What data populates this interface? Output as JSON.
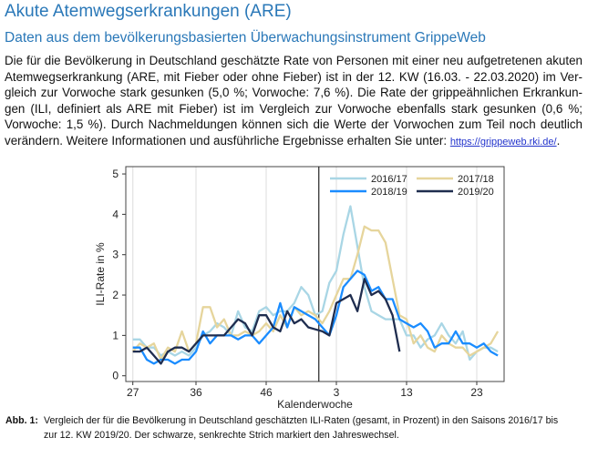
{
  "title": "Akute Atemwegserkrankungen (ARE)",
  "subtitle": "Daten aus dem bevölkerungsbasierten Überwachungsinstrument GrippeWeb",
  "paragraph_lines": [
    "Die für die Bevölkerung in Deutschland geschätzte Rate von Personen mit einer neu aufgetretenen akuten",
    "Atemwegserkrankung (ARE, mit Fieber oder ohne Fieber) ist in der 12. KW (16.03. - 22.03.2020) im Ver-",
    "gleich zur Vorwoche stark gesunken (5,0 %; Vorwoche: 7,6 %). Die Rate der grippeähnlichen Erkrankun-",
    "gen (ILI, definiert als ARE mit Fieber) ist im Vergleich zur Vorwoche ebenfalls stark gesunken (0,6 %;",
    "Vorwoche: 1,5 %). Durch Nachmeldungen können sich die Werte der Vorwochen zum Teil noch deutlich",
    "verändern. Weitere Informationen und ausführliche Ergebnisse erhalten Sie unter: "
  ],
  "link": "https://grippeweb.rki.de/",
  "link_suffix": ".",
  "caption": {
    "label": "Abb. 1:",
    "line1": "Vergleich der für die Bevölkerung in Deutschland geschätzten ILI-Raten (gesamt, in Prozent) in den Saisons 2016/17 bis",
    "line2": "zur 12. KW 2019/20. Der schwarze, senkrechte Strich markiert den Jahreswechsel."
  },
  "chart_data": {
    "type": "line",
    "xlabel": "Kalenderwoche",
    "ylabel": "ILI-Rate in %",
    "ylim": [
      0,
      5
    ],
    "yticks": [
      "0",
      "1",
      "2",
      "3",
      "4",
      "5"
    ],
    "weeks": [
      27,
      28,
      29,
      30,
      31,
      32,
      33,
      34,
      35,
      36,
      37,
      38,
      39,
      40,
      41,
      42,
      43,
      44,
      45,
      46,
      47,
      48,
      49,
      50,
      51,
      52,
      53,
      1,
      2,
      3,
      4,
      5,
      6,
      7,
      8,
      9,
      10,
      11,
      12,
      13,
      14,
      15,
      16,
      17,
      18,
      19,
      20,
      21,
      22,
      23,
      24,
      25,
      26
    ],
    "xticks": [
      "27",
      "36",
      "46",
      "3",
      "13",
      "23"
    ],
    "year_change_after_week": 53,
    "legend_position": "top-right",
    "series": [
      {
        "name": "2016/17",
        "color": "#a9d6e5",
        "values": [
          0.9,
          0.9,
          0.7,
          0.7,
          0.5,
          0.6,
          0.5,
          0.6,
          0.5,
          0.7,
          1.0,
          1.1,
          1.3,
          1.2,
          1.0,
          1.6,
          1.2,
          1.1,
          1.6,
          1.7,
          1.5,
          1.6,
          1.6,
          1.8,
          2.2,
          2.0,
          1.5,
          1.6,
          2.3,
          2.6,
          3.5,
          4.2,
          3.2,
          2.2,
          1.6,
          1.5,
          1.4,
          1.4,
          1.4,
          1.0,
          1.0,
          0.7,
          0.9,
          1.0,
          1.3,
          1.0,
          0.8,
          1.1,
          0.4,
          0.6,
          0.7,
          0.7,
          0.6
        ]
      },
      {
        "name": "2017/18",
        "color": "#e6d59c",
        "values": [
          0.6,
          0.8,
          0.7,
          0.8,
          0.4,
          0.7,
          0.6,
          1.1,
          0.6,
          0.8,
          1.7,
          1.7,
          1.2,
          1.4,
          1.0,
          1.0,
          1.1,
          1.0,
          1.1,
          1.3,
          1.1,
          1.5,
          1.2,
          1.7,
          1.5,
          1.6,
          1.5,
          1.3,
          1.6,
          2.0,
          2.4,
          2.4,
          3.0,
          3.7,
          3.6,
          3.6,
          3.3,
          2.4,
          1.5,
          1.4,
          0.8,
          1.0,
          0.7,
          0.6,
          1.0,
          0.8,
          0.7,
          0.7,
          0.5,
          0.6,
          0.7,
          0.8,
          1.1
        ]
      },
      {
        "name": "2018/19",
        "color": "#1a8cff",
        "values": [
          0.7,
          0.7,
          0.4,
          0.3,
          0.4,
          0.4,
          0.3,
          0.4,
          0.4,
          0.6,
          1.1,
          0.8,
          1.0,
          1.0,
          1.0,
          0.9,
          1.0,
          1.0,
          0.8,
          1.0,
          1.2,
          1.8,
          1.2,
          1.7,
          1.6,
          1.5,
          1.4,
          1.2,
          1.0,
          1.5,
          2.2,
          2.4,
          2.6,
          2.5,
          2.1,
          2.2,
          1.9,
          1.9,
          1.4,
          1.3,
          1.2,
          1.3,
          1.1,
          0.7,
          0.8,
          0.8,
          1.1,
          0.8,
          0.8,
          0.7,
          0.8,
          0.6,
          0.5
        ]
      },
      {
        "name": "2019/20",
        "color": "#1f2d4f",
        "values": [
          0.6,
          0.6,
          0.7,
          0.5,
          0.3,
          0.6,
          0.7,
          0.7,
          0.6,
          0.8,
          1.0,
          1.0,
          1.0,
          1.0,
          1.2,
          1.4,
          1.3,
          1.0,
          1.5,
          1.5,
          1.2,
          1.1,
          1.6,
          1.3,
          1.4,
          1.2,
          1.15,
          1.1,
          1.0,
          1.8,
          1.9,
          2.0,
          1.6,
          2.4,
          2.0,
          2.1,
          1.9,
          1.5,
          0.6
        ]
      }
    ]
  }
}
